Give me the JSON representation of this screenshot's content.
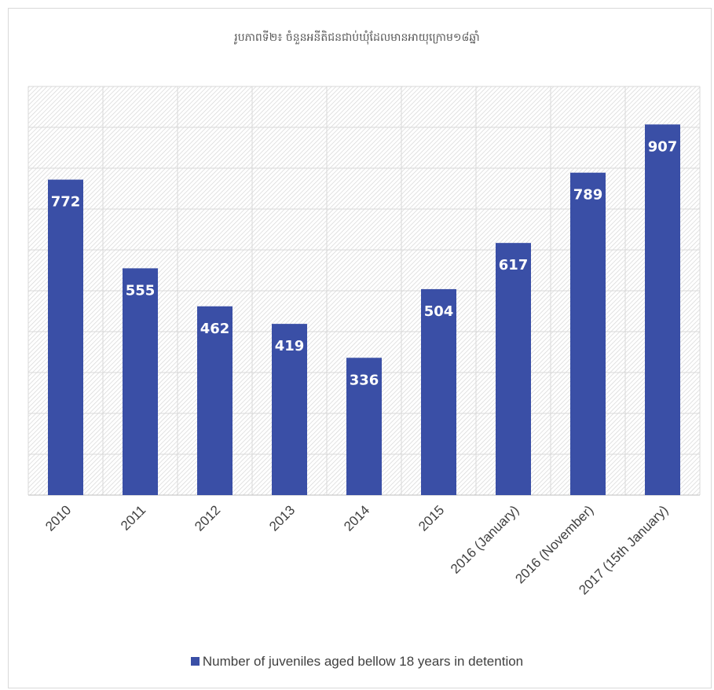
{
  "chart_data": {
    "type": "bar",
    "title": "រូបភាពទី២៖ ចំនួនអនីតិជនជាប់ឃុំដែលមានអាយុក្រោម១៨ឆ្នាំ",
    "categories": [
      "2010",
      "2011",
      "2012",
      "2013",
      "2014",
      "2015",
      "2016 (January)",
      "2016 (November)",
      "2017 (15th January)"
    ],
    "series": [
      {
        "name": "Number of juveniles aged bellow 18 years in detention",
        "values": [
          772,
          555,
          462,
          419,
          336,
          504,
          617,
          789,
          907
        ],
        "color": "#3a4fa6"
      }
    ],
    "ylim": [
      0,
      1000
    ],
    "grid": true,
    "data_labels": true,
    "legend_position": "bottom",
    "xlabel": "",
    "ylabel": ""
  },
  "colors": {
    "bar": "#3a4fa6",
    "data_label": "#ffffff",
    "plot_hatch": "#dcdcdc",
    "gridline": "#d9d9d9"
  }
}
